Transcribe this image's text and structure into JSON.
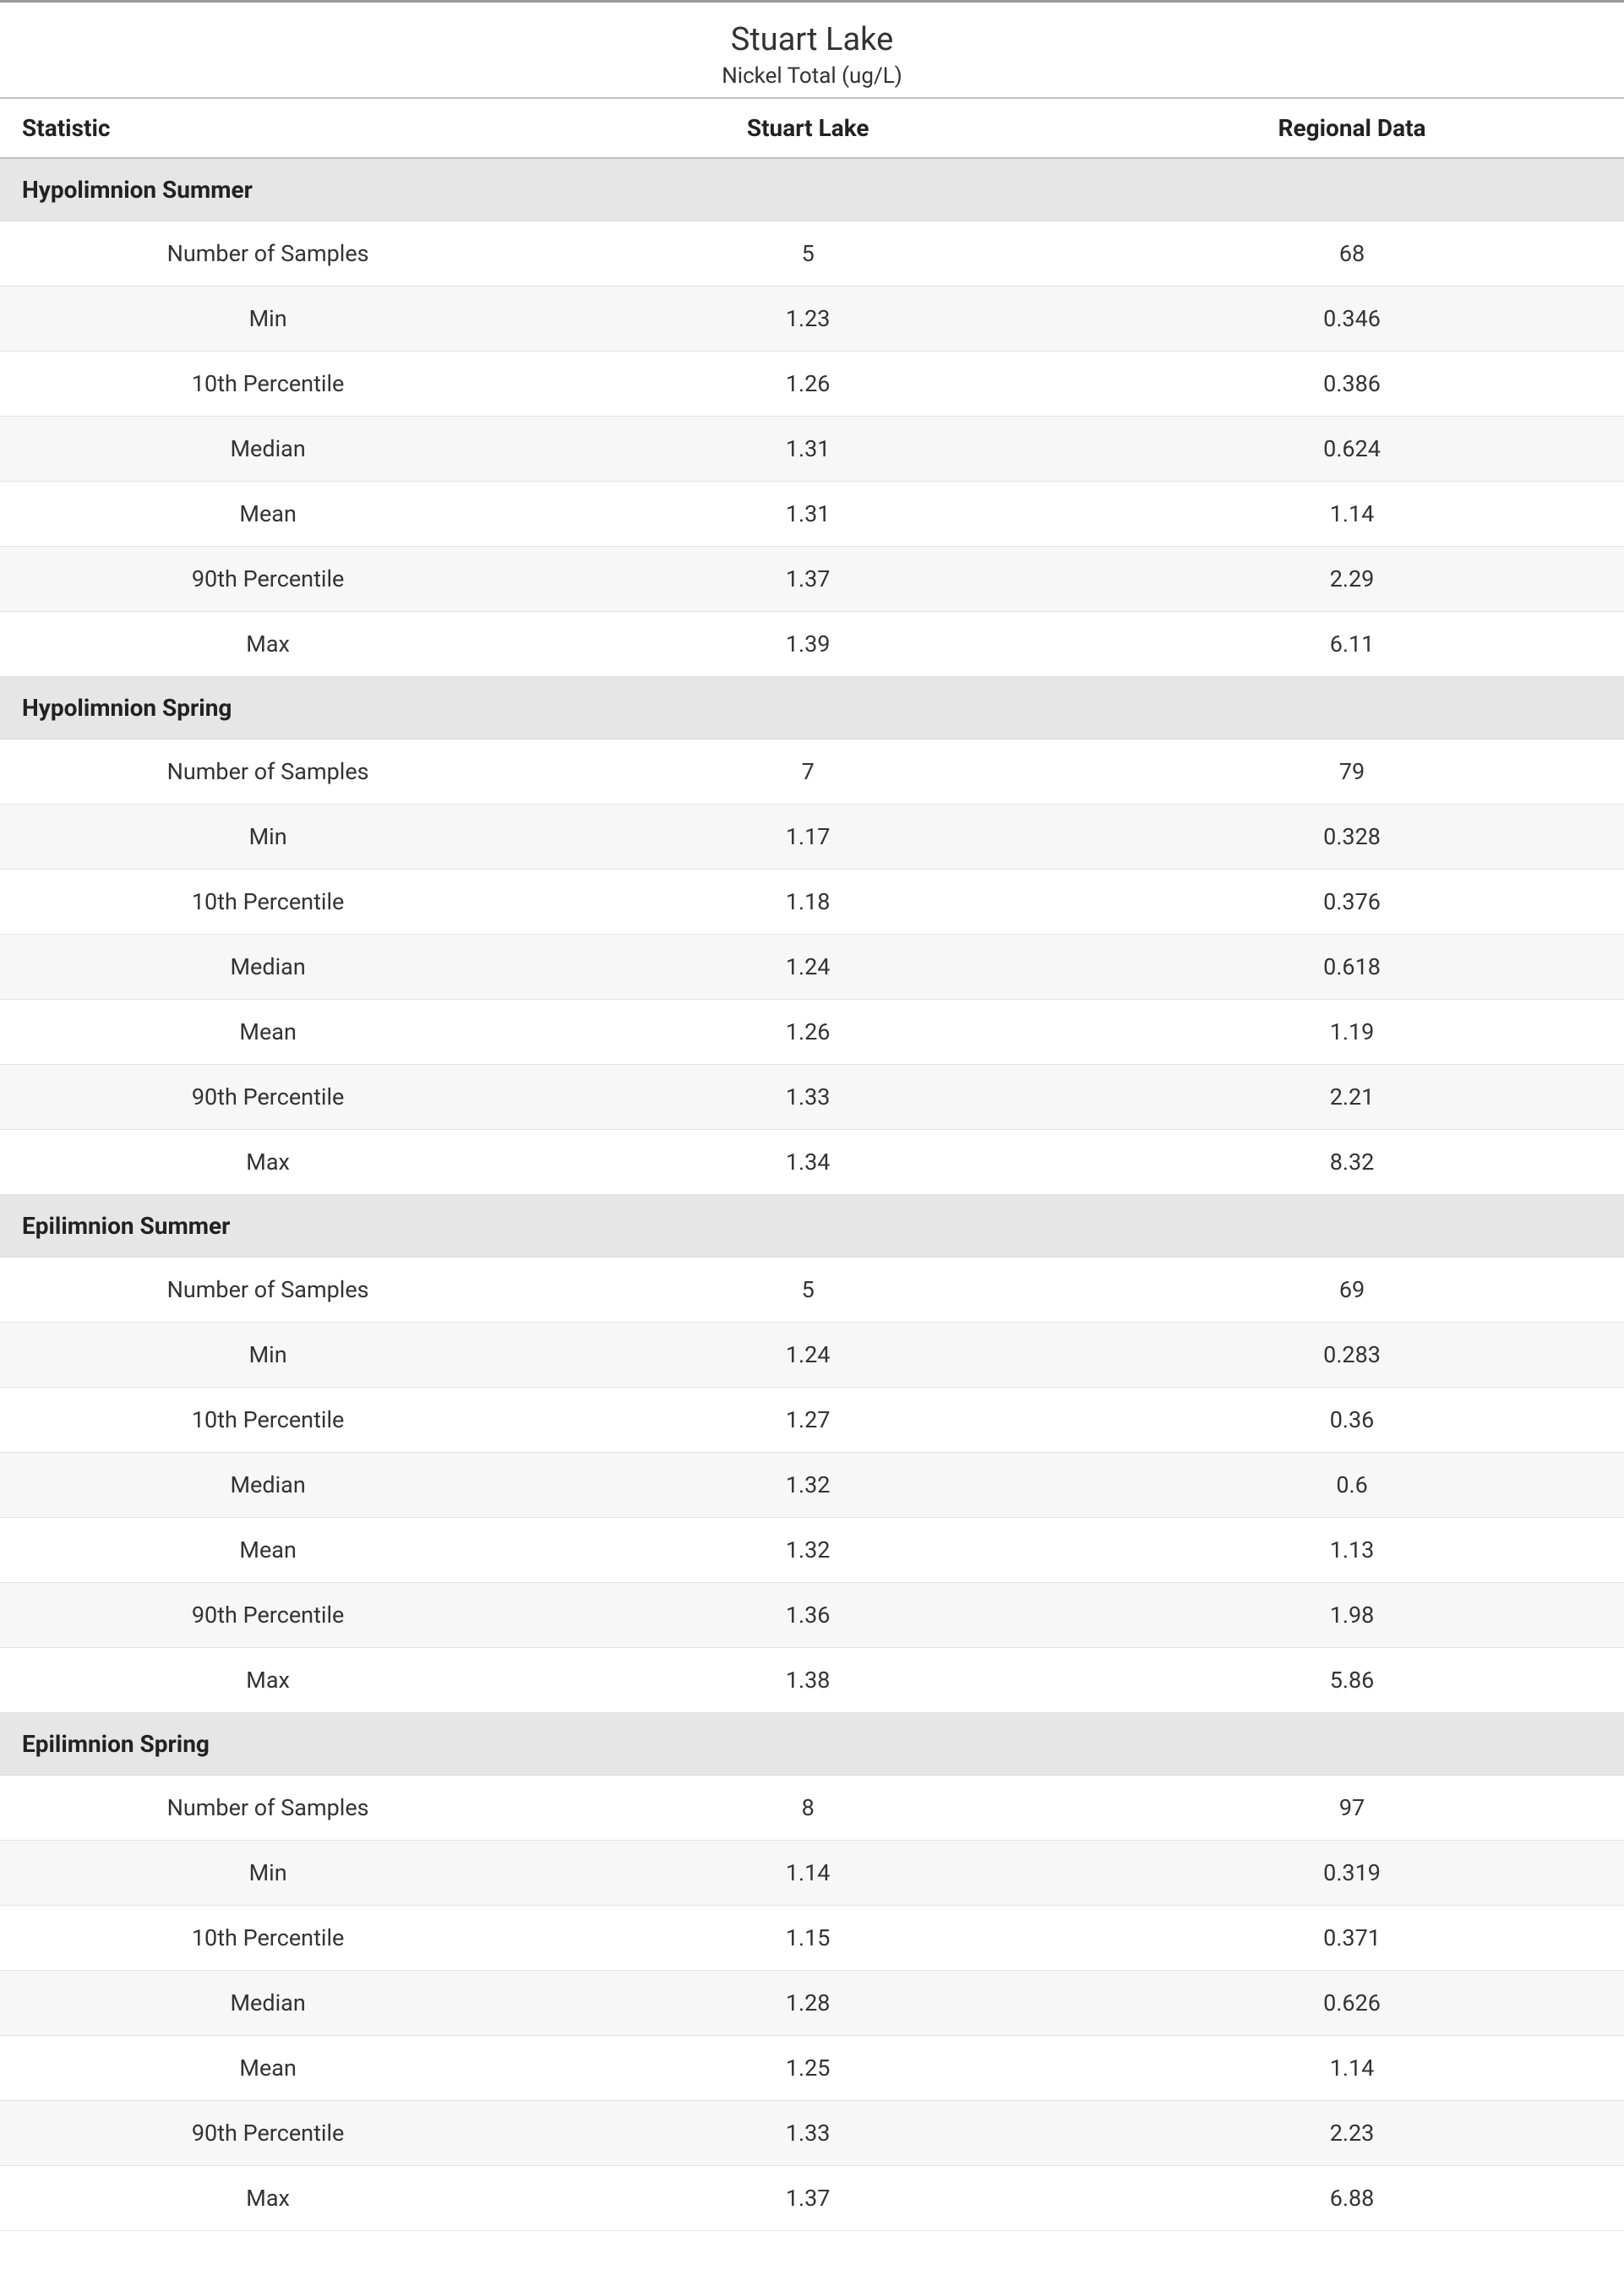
{
  "header": {
    "title": "Stuart Lake",
    "subtitle": "Nickel Total (ug/L)"
  },
  "columns": {
    "stat": "Statistic",
    "col1": "Stuart Lake",
    "col2": "Regional Data"
  },
  "style": {
    "colors": {
      "page_bg": "#ffffff",
      "text": "#333333",
      "header_rule": "#9a9a9a",
      "th_rule": "#bfbfbf",
      "section_bg": "#e6e6e6",
      "row_alt_bg": "#f7f7f7",
      "row_bg": "#ffffff",
      "row_border": "#e4e4e4"
    },
    "fonts": {
      "title_size_pt": 28,
      "subtitle_size_pt": 20,
      "th_size_pt": 21,
      "section_size_pt": 21,
      "cell_size_pt": 20,
      "family": "Segoe UI"
    },
    "col_widths_pct": [
      33,
      33.5,
      33.5
    ]
  },
  "sections": [
    {
      "name": "Hypolimnion Summer",
      "rows": [
        {
          "stat": "Number of Samples",
          "v1": "5",
          "v2": "68"
        },
        {
          "stat": "Min",
          "v1": "1.23",
          "v2": "0.346"
        },
        {
          "stat": "10th Percentile",
          "v1": "1.26",
          "v2": "0.386"
        },
        {
          "stat": "Median",
          "v1": "1.31",
          "v2": "0.624"
        },
        {
          "stat": "Mean",
          "v1": "1.31",
          "v2": "1.14"
        },
        {
          "stat": "90th Percentile",
          "v1": "1.37",
          "v2": "2.29"
        },
        {
          "stat": "Max",
          "v1": "1.39",
          "v2": "6.11"
        }
      ]
    },
    {
      "name": "Hypolimnion Spring",
      "rows": [
        {
          "stat": "Number of Samples",
          "v1": "7",
          "v2": "79"
        },
        {
          "stat": "Min",
          "v1": "1.17",
          "v2": "0.328"
        },
        {
          "stat": "10th Percentile",
          "v1": "1.18",
          "v2": "0.376"
        },
        {
          "stat": "Median",
          "v1": "1.24",
          "v2": "0.618"
        },
        {
          "stat": "Mean",
          "v1": "1.26",
          "v2": "1.19"
        },
        {
          "stat": "90th Percentile",
          "v1": "1.33",
          "v2": "2.21"
        },
        {
          "stat": "Max",
          "v1": "1.34",
          "v2": "8.32"
        }
      ]
    },
    {
      "name": "Epilimnion Summer",
      "rows": [
        {
          "stat": "Number of Samples",
          "v1": "5",
          "v2": "69"
        },
        {
          "stat": "Min",
          "v1": "1.24",
          "v2": "0.283"
        },
        {
          "stat": "10th Percentile",
          "v1": "1.27",
          "v2": "0.36"
        },
        {
          "stat": "Median",
          "v1": "1.32",
          "v2": "0.6"
        },
        {
          "stat": "Mean",
          "v1": "1.32",
          "v2": "1.13"
        },
        {
          "stat": "90th Percentile",
          "v1": "1.36",
          "v2": "1.98"
        },
        {
          "stat": "Max",
          "v1": "1.38",
          "v2": "5.86"
        }
      ]
    },
    {
      "name": "Epilimnion Spring",
      "rows": [
        {
          "stat": "Number of Samples",
          "v1": "8",
          "v2": "97"
        },
        {
          "stat": "Min",
          "v1": "1.14",
          "v2": "0.319"
        },
        {
          "stat": "10th Percentile",
          "v1": "1.15",
          "v2": "0.371"
        },
        {
          "stat": "Median",
          "v1": "1.28",
          "v2": "0.626"
        },
        {
          "stat": "Mean",
          "v1": "1.25",
          "v2": "1.14"
        },
        {
          "stat": "90th Percentile",
          "v1": "1.33",
          "v2": "2.23"
        },
        {
          "stat": "Max",
          "v1": "1.37",
          "v2": "6.88"
        }
      ]
    }
  ]
}
